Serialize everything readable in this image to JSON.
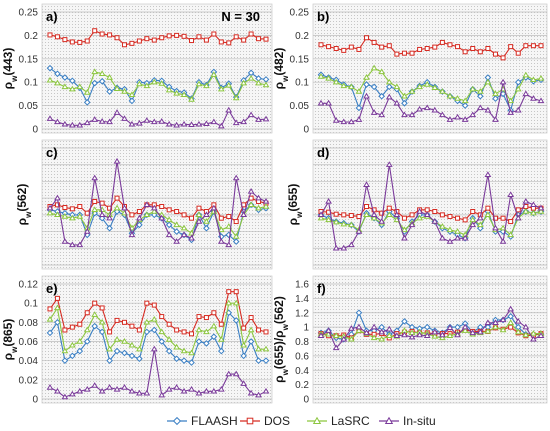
{
  "chart_data": [
    {
      "type": "line",
      "panel_label": "a)",
      "annotation": "N = 30",
      "ylabel_parts": [
        "ρ",
        "w",
        "(443)"
      ],
      "ylim": [
        0,
        0.25
      ],
      "yticks": [
        0,
        0.05,
        0.1,
        0.15,
        0.2,
        0.25
      ],
      "tick_labels": [
        "0",
        "0.05",
        "0.1",
        "0.15",
        "0.2",
        "0.25"
      ],
      "grid": true,
      "series": [
        {
          "name": "FLAASH",
          "values": [
            0.13,
            0.118,
            0.11,
            0.103,
            0.088,
            0.057,
            0.098,
            0.102,
            0.08,
            0.088,
            0.085,
            0.06,
            0.1,
            0.098,
            0.104,
            0.103,
            0.09,
            0.081,
            0.078,
            0.065,
            0.1,
            0.094,
            0.122,
            0.088,
            0.097,
            0.068,
            0.104,
            0.12,
            0.108,
            0.106
          ]
        },
        {
          "name": "DOS",
          "values": [
            0.201,
            0.197,
            0.191,
            0.186,
            0.185,
            0.188,
            0.21,
            0.203,
            0.201,
            0.195,
            0.18,
            0.183,
            0.188,
            0.193,
            0.19,
            0.195,
            0.199,
            0.2,
            0.198,
            0.189,
            0.197,
            0.19,
            0.203,
            0.186,
            0.184,
            0.197,
            0.19,
            0.203,
            0.193,
            0.192
          ]
        },
        {
          "name": "LaSRC",
          "values": [
            0.104,
            0.098,
            0.09,
            0.085,
            0.09,
            0.078,
            0.122,
            0.118,
            0.11,
            0.086,
            0.08,
            0.073,
            0.096,
            0.092,
            0.1,
            0.097,
            0.083,
            0.076,
            0.073,
            0.063,
            0.096,
            0.092,
            0.116,
            0.085,
            0.093,
            0.066,
            0.098,
            0.108,
            0.098,
            0.094
          ]
        },
        {
          "name": "In-situ",
          "values": [
            0.022,
            0.015,
            0.01,
            0.008,
            0.008,
            0.013,
            0.02,
            0.016,
            0.015,
            0.035,
            0.022,
            0.01,
            0.012,
            0.018,
            0.015,
            0.016,
            0.01,
            0.008,
            0.01,
            0.009,
            0.01,
            0.011,
            0.015,
            0.006,
            0.04,
            0.013,
            0.015,
            0.03,
            0.02,
            0.021
          ]
        }
      ]
    },
    {
      "type": "line",
      "panel_label": "b)",
      "annotation": "",
      "ylabel_parts": [
        "ρ",
        "w",
        "(482)"
      ],
      "ylim": [
        0,
        0.25
      ],
      "yticks": [
        0,
        0.05,
        0.1,
        0.15,
        0.2,
        0.25
      ],
      "tick_labels": [
        "0",
        "0.05",
        "0.1",
        "0.15",
        "0.2",
        "0.25"
      ],
      "grid": true,
      "series": [
        {
          "name": "FLAASH",
          "values": [
            0.116,
            0.11,
            0.105,
            0.095,
            0.09,
            0.045,
            0.095,
            0.09,
            0.07,
            0.09,
            0.085,
            0.055,
            0.08,
            0.092,
            0.1,
            0.09,
            0.08,
            0.07,
            0.06,
            0.05,
            0.085,
            0.07,
            0.11,
            0.065,
            0.075,
            0.04,
            0.1,
            0.11,
            0.102,
            0.105
          ]
        },
        {
          "name": "DOS",
          "values": [
            0.18,
            0.176,
            0.172,
            0.168,
            0.175,
            0.17,
            0.195,
            0.185,
            0.175,
            0.178,
            0.16,
            0.162,
            0.162,
            0.17,
            0.172,
            0.175,
            0.185,
            0.18,
            0.176,
            0.165,
            0.172,
            0.165,
            0.172,
            0.16,
            0.152,
            0.176,
            0.162,
            0.178,
            0.178,
            0.178
          ]
        },
        {
          "name": "LaSRC",
          "values": [
            0.112,
            0.108,
            0.1,
            0.092,
            0.09,
            0.08,
            0.11,
            0.13,
            0.122,
            0.1,
            0.09,
            0.07,
            0.08,
            0.09,
            0.095,
            0.088,
            0.08,
            0.07,
            0.065,
            0.06,
            0.085,
            0.08,
            0.1,
            0.075,
            0.085,
            0.06,
            0.085,
            0.115,
            0.105,
            0.108
          ]
        },
        {
          "name": "In-situ",
          "values": [
            0.055,
            0.055,
            0.018,
            0.015,
            0.015,
            0.02,
            0.07,
            0.035,
            0.03,
            0.068,
            0.055,
            0.03,
            0.03,
            0.042,
            0.045,
            0.04,
            0.03,
            0.02,
            0.025,
            0.02,
            0.03,
            0.045,
            0.04,
            0.02,
            0.1,
            0.035,
            0.04,
            0.075,
            0.065,
            0.06
          ]
        }
      ]
    },
    {
      "type": "line",
      "panel_label": "c)",
      "annotation": "",
      "ylabel_parts": [
        "ρ",
        "w",
        "(562)"
      ],
      "ylim": [
        0,
        0.35
      ],
      "yticks": [
        0,
        0.05,
        0.1,
        0.15,
        0.2,
        0.25,
        0.3,
        0.35
      ],
      "tick_labels": [
        "",
        "",
        "",
        "",
        "",
        "",
        "",
        ""
      ],
      "grid": true,
      "series": [
        {
          "name": "FLAASH",
          "values": [
            0.165,
            0.16,
            0.155,
            0.15,
            0.15,
            0.09,
            0.155,
            0.14,
            0.11,
            0.16,
            0.15,
            0.095,
            0.12,
            0.15,
            0.15,
            0.14,
            0.12,
            0.1,
            0.09,
            0.075,
            0.15,
            0.11,
            0.16,
            0.085,
            0.09,
            0.07,
            0.16,
            0.18,
            0.165,
            0.17
          ]
        },
        {
          "name": "DOS",
          "values": [
            0.175,
            0.18,
            0.172,
            0.168,
            0.175,
            0.155,
            0.19,
            0.185,
            0.17,
            0.2,
            0.175,
            0.15,
            0.16,
            0.18,
            0.18,
            0.175,
            0.165,
            0.16,
            0.15,
            0.14,
            0.17,
            0.16,
            0.18,
            0.14,
            0.145,
            0.13,
            0.18,
            0.2,
            0.19,
            0.185
          ]
        },
        {
          "name": "LaSRC",
          "values": [
            0.155,
            0.15,
            0.145,
            0.14,
            0.145,
            0.11,
            0.165,
            0.165,
            0.15,
            0.17,
            0.155,
            0.11,
            0.135,
            0.15,
            0.16,
            0.15,
            0.135,
            0.12,
            0.11,
            0.095,
            0.15,
            0.13,
            0.16,
            0.105,
            0.115,
            0.085,
            0.15,
            0.18,
            0.17,
            0.175
          ]
        },
        {
          "name": "In-situ",
          "values": [
            0.17,
            0.2,
            0.07,
            0.06,
            0.06,
            0.1,
            0.26,
            0.15,
            0.14,
            0.31,
            0.17,
            0.09,
            0.14,
            0.18,
            0.17,
            0.14,
            0.09,
            0.07,
            0.09,
            0.08,
            0.13,
            0.15,
            0.17,
            0.07,
            0.06,
            0.26,
            0.15,
            0.22,
            0.2,
            0.19
          ]
        }
      ]
    },
    {
      "type": "line",
      "panel_label": "d)",
      "annotation": "",
      "ylabel_parts": [
        "ρ",
        "w",
        "(655)"
      ],
      "ylim": [
        0,
        0.35
      ],
      "yticks": [
        0,
        0.05,
        0.1,
        0.15,
        0.2,
        0.25,
        0.3,
        0.35
      ],
      "tick_labels": [
        "",
        "",
        "",
        "",
        "",
        "",
        "",
        ""
      ],
      "grid": true,
      "series": [
        {
          "name": "FLAASH",
          "values": [
            0.15,
            0.14,
            0.13,
            0.125,
            0.12,
            0.1,
            0.155,
            0.14,
            0.12,
            0.16,
            0.14,
            0.1,
            0.13,
            0.15,
            0.15,
            0.13,
            0.11,
            0.1,
            0.09,
            0.08,
            0.14,
            0.11,
            0.16,
            0.1,
            0.1,
            0.085,
            0.15,
            0.16,
            0.155,
            0.16
          ]
        },
        {
          "name": "DOS",
          "values": [
            0.16,
            0.158,
            0.152,
            0.15,
            0.148,
            0.145,
            0.175,
            0.165,
            0.155,
            0.17,
            0.16,
            0.14,
            0.15,
            0.165,
            0.165,
            0.16,
            0.15,
            0.145,
            0.14,
            0.135,
            0.16,
            0.15,
            0.17,
            0.14,
            0.14,
            0.13,
            0.165,
            0.175,
            0.17,
            0.17
          ]
        },
        {
          "name": "LaSRC",
          "values": [
            0.14,
            0.135,
            0.128,
            0.122,
            0.12,
            0.105,
            0.15,
            0.14,
            0.125,
            0.15,
            0.135,
            0.105,
            0.125,
            0.14,
            0.145,
            0.13,
            0.115,
            0.105,
            0.1,
            0.09,
            0.135,
            0.12,
            0.15,
            0.105,
            0.11,
            0.09,
            0.14,
            0.16,
            0.155,
            0.16
          ]
        },
        {
          "name": "In-situ",
          "values": [
            0.15,
            0.19,
            0.05,
            0.05,
            0.06,
            0.1,
            0.24,
            0.15,
            0.13,
            0.3,
            0.15,
            0.08,
            0.12,
            0.16,
            0.15,
            0.13,
            0.08,
            0.07,
            0.08,
            0.08,
            0.12,
            0.14,
            0.27,
            0.11,
            0.07,
            0.21,
            0.14,
            0.19,
            0.18,
            0.17
          ]
        }
      ]
    },
    {
      "type": "line",
      "panel_label": "e)",
      "annotation": "",
      "ylabel_parts": [
        "ρ",
        "w",
        "(865)"
      ],
      "ylim": [
        0,
        0.12
      ],
      "yticks": [
        0,
        0.02,
        0.04,
        0.06,
        0.08,
        0.1,
        0.12
      ],
      "tick_labels": [
        "0",
        "0.02",
        "0.04",
        "0.06",
        "0.08",
        "0.1",
        "0.12"
      ],
      "grid": true,
      "series": [
        {
          "name": "FLAASH",
          "values": [
            0.069,
            0.08,
            0.04,
            0.045,
            0.05,
            0.06,
            0.076,
            0.07,
            0.04,
            0.05,
            0.048,
            0.045,
            0.042,
            0.07,
            0.072,
            0.06,
            0.05,
            0.042,
            0.04,
            0.038,
            0.06,
            0.058,
            0.065,
            0.05,
            0.09,
            0.082,
            0.045,
            0.06,
            0.04,
            0.04
          ]
        },
        {
          "name": "DOS",
          "values": [
            0.094,
            0.105,
            0.072,
            0.075,
            0.078,
            0.09,
            0.1,
            0.095,
            0.07,
            0.082,
            0.08,
            0.076,
            0.072,
            0.1,
            0.098,
            0.086,
            0.078,
            0.072,
            0.07,
            0.068,
            0.086,
            0.085,
            0.09,
            0.078,
            0.112,
            0.112,
            0.074,
            0.085,
            0.072,
            0.07
          ]
        },
        {
          "name": "LaSRC",
          "values": [
            0.083,
            0.095,
            0.05,
            0.056,
            0.06,
            0.072,
            0.088,
            0.08,
            0.052,
            0.062,
            0.06,
            0.056,
            0.052,
            0.08,
            0.083,
            0.07,
            0.062,
            0.054,
            0.05,
            0.048,
            0.072,
            0.07,
            0.076,
            0.062,
            0.1,
            0.1,
            0.056,
            0.072,
            0.052,
            0.052
          ]
        },
        {
          "name": "In-situ",
          "values": [
            0.012,
            0.008,
            0.002,
            0.005,
            0.008,
            0.01,
            0.014,
            0.008,
            0.012,
            0.01,
            0.012,
            0.008,
            0.006,
            0.006,
            0.052,
            0.004,
            0.01,
            0.012,
            0.008,
            0.01,
            0.006,
            0.008,
            0.008,
            0.01,
            0.026,
            0.026,
            0.016,
            0.006,
            0.004,
            0.008
          ]
        }
      ]
    },
    {
      "type": "line",
      "panel_label": "f)",
      "annotation": "",
      "ylabel_parts": [
        "ρ",
        "w",
        "(655)/",
        "ρ",
        "w",
        "(562)"
      ],
      "ylim": [
        0,
        1.6
      ],
      "yticks": [
        0,
        0.2,
        0.4,
        0.6,
        0.8,
        1,
        1.2,
        1.4,
        1.6
      ],
      "tick_labels": [
        "0",
        "0.2",
        "0.4",
        "0.6",
        "0.8",
        "1",
        "1.2",
        "1.4",
        "1.6"
      ],
      "grid": true,
      "series": [
        {
          "name": "FLAASH",
          "values": [
            0.92,
            0.95,
            0.85,
            0.83,
            0.9,
            1.2,
            0.95,
            0.95,
            1.0,
            0.9,
            0.95,
            1.08,
            1.0,
            0.98,
            1.0,
            0.95,
            0.92,
            1.0,
            1.0,
            1.05,
            0.93,
            1.0,
            1.0,
            1.1,
            1.1,
            1.15,
            1.0,
            0.9,
            0.9,
            0.9
          ]
        },
        {
          "name": "DOS",
          "values": [
            0.91,
            0.88,
            0.88,
            0.89,
            0.85,
            0.95,
            0.9,
            0.9,
            0.91,
            0.85,
            0.91,
            0.93,
            0.94,
            0.92,
            0.92,
            0.91,
            0.91,
            0.91,
            0.93,
            0.96,
            0.94,
            0.94,
            0.94,
            0.99,
            0.97,
            1.0,
            0.92,
            0.88,
            0.89,
            0.91
          ]
        },
        {
          "name": "LaSRC",
          "values": [
            0.9,
            0.9,
            0.88,
            0.87,
            0.83,
            0.95,
            0.91,
            0.85,
            0.83,
            0.88,
            0.87,
            0.95,
            0.92,
            0.93,
            0.91,
            0.87,
            0.85,
            0.88,
            0.91,
            0.95,
            0.9,
            0.92,
            0.94,
            1.0,
            0.96,
            1.06,
            0.93,
            0.89,
            0.91,
            0.91
          ]
        },
        {
          "name": "In-situ",
          "values": [
            0.88,
            0.95,
            0.71,
            0.83,
            0.98,
            1.0,
            0.92,
            1.0,
            0.93,
            0.97,
            0.88,
            0.89,
            0.86,
            0.89,
            0.88,
            0.93,
            0.89,
            0.99,
            0.89,
            1.0,
            0.92,
            0.93,
            1.06,
            1.06,
            1.1,
            1.25,
            1.08,
            1.0,
            0.83,
            0.88
          ]
        }
      ]
    }
  ],
  "legend": {
    "position": "bottom",
    "items": [
      {
        "name": "FLAASH",
        "color": "#3a7fc4",
        "marker": "diamond"
      },
      {
        "name": "DOS",
        "color": "#d62b22",
        "marker": "square"
      },
      {
        "name": "LaSRC",
        "color": "#8cc63f",
        "marker": "triangle"
      },
      {
        "name": "In-situ",
        "color": "#7a3a9a",
        "marker": "triangle"
      }
    ]
  }
}
